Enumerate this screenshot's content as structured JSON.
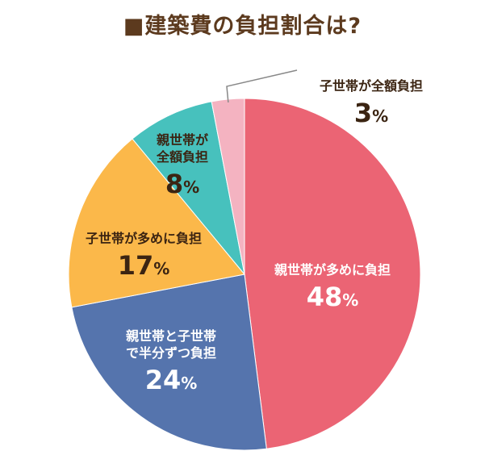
{
  "chart_data": {
    "type": "pie",
    "title": "■建築費の負担割合は?",
    "slices": [
      {
        "label": "親世帯が多めに負担",
        "value": 48,
        "color": "#eb6474"
      },
      {
        "label": "親世帯と子世帯で半分ずつ負担",
        "value": 24,
        "color": "#5574ad"
      },
      {
        "label": "子世帯が多めに負担",
        "value": 17,
        "color": "#fbb84a"
      },
      {
        "label": "親世帯が全額負担",
        "value": 8,
        "color": "#47c1bd"
      },
      {
        "label": "子世帯が全額負担",
        "value": 3,
        "color": "#f4b3c1"
      }
    ],
    "unit": "%",
    "start_angle": "12 o'clock",
    "direction": "clockwise"
  }
}
